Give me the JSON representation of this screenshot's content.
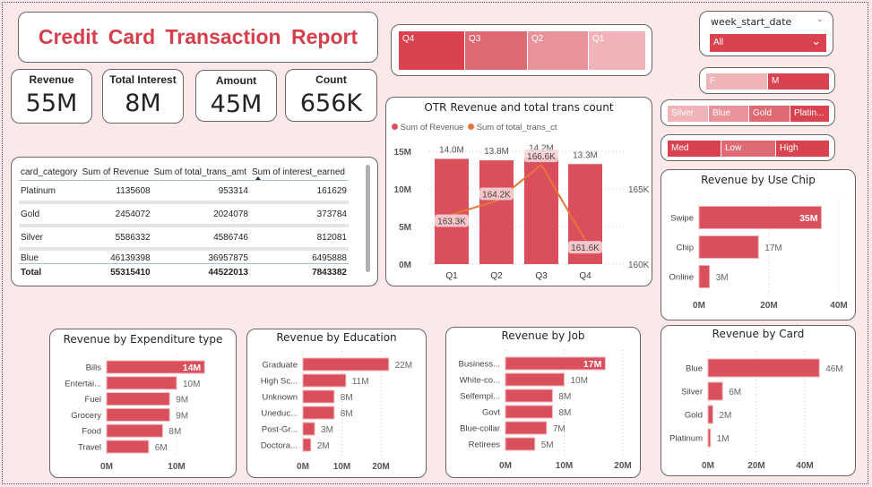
{
  "title": "Credit  Card  Transaction Report",
  "kpis": [
    {
      "label": "Revenue",
      "value": "55M"
    },
    {
      "label": "Total Interest",
      "value": "8M"
    },
    {
      "label": "Amount",
      "value": "45M"
    },
    {
      "label": "Count",
      "value": "656K"
    }
  ],
  "table": {
    "columns": [
      "card_category",
      "Sum of Revenue",
      "Sum of total_trans_amt",
      "Sum of interest_earned"
    ],
    "rows": [
      [
        "Platinum",
        "1135608",
        "953314",
        "161629"
      ],
      [
        "Gold",
        "2454072",
        "2024078",
        "373784"
      ],
      [
        "Silver",
        "5586332",
        "4586746",
        "812081"
      ],
      [
        "Blue",
        "46139398",
        "36957875",
        "6495888"
      ]
    ],
    "total": [
      "Total",
      "55315410",
      "44522013",
      "7843382"
    ],
    "sort_column": "Sum of interest_earned"
  },
  "slicers": {
    "quarter": [
      "Q4",
      "Q3",
      "Q2",
      "Q1"
    ],
    "week": {
      "label": "week_start_date",
      "value": "All"
    },
    "gender": [
      "F",
      "M"
    ],
    "card_category": [
      "Silver",
      "Blue",
      "Gold",
      "Platin..."
    ],
    "income": [
      "Med",
      "Low",
      "High"
    ]
  },
  "colors": {
    "bar": "#d94f5c",
    "accent": "#d73e4b",
    "line": "#e8743b",
    "slicer_dark": "#d9434f",
    "slicer_mid": "#e07a82",
    "slicer_light": "#f0b3b8"
  },
  "chart_data": [
    {
      "id": "otr",
      "type": "bar+line",
      "title": "OTR Revenue and total trans count",
      "categories": [
        "Q1",
        "Q2",
        "Q3",
        "Q4"
      ],
      "series": [
        {
          "name": "Sum of Revenue",
          "values": [
            14.0,
            13.8,
            14.2,
            13.3
          ],
          "labels": [
            "14.0M",
            "13.8M",
            "14.2M",
            "13.3M"
          ],
          "unit": "M",
          "axis": "left"
        },
        {
          "name": "Sum of total_trans_ct",
          "values": [
            163.3,
            164.2,
            166.6,
            161.6
          ],
          "labels": [
            "163.3K",
            "164.2K",
            "166.6K",
            "161.6K"
          ],
          "unit": "K",
          "axis": "right"
        }
      ],
      "ylim": [
        0,
        15
      ],
      "yticks": [
        "0M",
        "5M",
        "10M",
        "15M"
      ],
      "y2lim": [
        160,
        167.5
      ],
      "y2ticks": [
        "160K",
        "165K"
      ],
      "legend": "top-left"
    },
    {
      "id": "chip",
      "type": "bar",
      "orientation": "horizontal",
      "title": "Revenue by Use Chip",
      "categories": [
        "Swipe",
        "Chip",
        "Online"
      ],
      "values": [
        35,
        17,
        3
      ],
      "labels": [
        "35M",
        "17M",
        "3M"
      ],
      "xticks": [
        "0M",
        "20M",
        "40M"
      ],
      "xtick_values": [
        0,
        20,
        40
      ]
    },
    {
      "id": "exp",
      "type": "bar",
      "orientation": "horizontal",
      "title": "Revenue by Expenditure type",
      "categories": [
        "Bills",
        "Entertai...",
        "Fuel",
        "Grocery",
        "Food",
        "Travel"
      ],
      "values": [
        14,
        10,
        9,
        9,
        8,
        6
      ],
      "labels": [
        "14M",
        "10M",
        "9M",
        "9M",
        "8M",
        "6M"
      ],
      "xticks": [
        "0M",
        "10M"
      ],
      "xtick_values": [
        0,
        10
      ]
    },
    {
      "id": "edu",
      "type": "bar",
      "orientation": "horizontal",
      "title": "Revenue by Education",
      "categories": [
        "Graduate",
        "High Sc...",
        "Unknown",
        "Uneduc...",
        "Post-Gr...",
        "Doctora..."
      ],
      "values": [
        22,
        11,
        8,
        8,
        3,
        2
      ],
      "labels": [
        "22M",
        "11M",
        "8M",
        "8M",
        "3M",
        "2M"
      ],
      "xticks": [
        "0M",
        "10M",
        "20M"
      ],
      "xtick_values": [
        0,
        10,
        20
      ]
    },
    {
      "id": "job",
      "type": "bar",
      "orientation": "horizontal",
      "title": "Revenue by Job",
      "categories": [
        "Business...",
        "White-co...",
        "Selfempl...",
        "Govt",
        "Blue-collar",
        "Retirees"
      ],
      "values": [
        17,
        10,
        8,
        8,
        7,
        5
      ],
      "labels": [
        "17M",
        "10M",
        "8M",
        "8M",
        "7M",
        "5M"
      ],
      "xticks": [
        "0M",
        "10M",
        "20M"
      ],
      "xtick_values": [
        0,
        10,
        20
      ]
    },
    {
      "id": "card",
      "type": "bar",
      "orientation": "horizontal",
      "title": "Revenue by Card",
      "categories": [
        "Blue",
        "Silver",
        "Gold",
        "Platinum"
      ],
      "values": [
        46,
        6,
        2,
        1
      ],
      "labels": [
        "46M",
        "6M",
        "2M",
        "1M"
      ],
      "xticks": [
        "0M",
        "20M",
        "40M"
      ],
      "xtick_values": [
        0,
        20,
        40
      ]
    }
  ]
}
